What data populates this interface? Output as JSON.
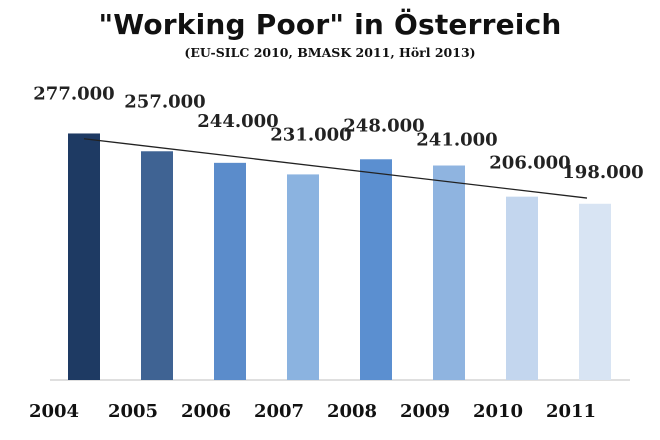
{
  "title": "\"Working Poor\" in Österreich",
  "subtitle": "(EU-SILC 2010, BMASK 2011, Hörl 2013)",
  "chart_data": {
    "type": "bar",
    "title": "\"Working Poor\" in Österreich",
    "subtitle": "(EU-SILC 2010, BMASK 2011, Hörl 2013)",
    "categories": [
      "2004",
      "2005",
      "2006",
      "2007",
      "2008",
      "2009",
      "2010",
      "2011"
    ],
    "values": [
      277000,
      257000,
      244000,
      231000,
      248000,
      241000,
      206000,
      198000
    ],
    "value_labels": [
      "277.000",
      "257.000",
      "244.000",
      "231.000",
      "248.000",
      "241.000",
      "206.000",
      "198.000"
    ],
    "bar_colors": [
      "#1e3a63",
      "#3f6393",
      "#5b8ccb",
      "#8bb3e0",
      "#5b8fd0",
      "#8fb4e0",
      "#c3d6ee",
      "#d8e4f3"
    ],
    "trendline": true,
    "ylim": [
      0,
      300000
    ],
    "grid": false,
    "legend": "none"
  }
}
